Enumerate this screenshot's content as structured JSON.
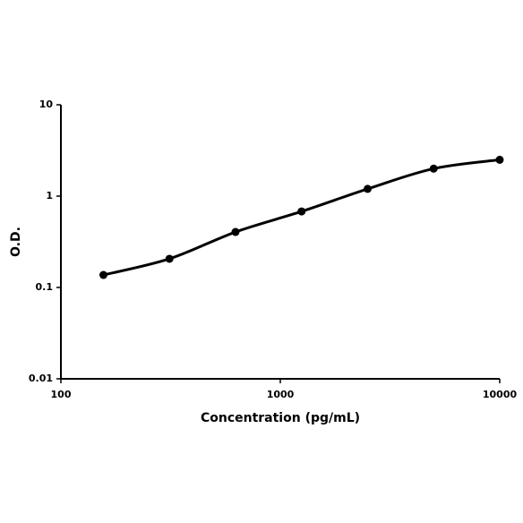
{
  "chart_data": {
    "type": "line",
    "x_label": "Concentration (pg/mL)",
    "y_label": "O.D.",
    "x": [
      156.25,
      312.5,
      625,
      1250,
      2500,
      5000,
      10000
    ],
    "series": [
      {
        "color": "#000000",
        "values": [
          0.137,
          0.206,
          0.405,
          0.68,
          1.2,
          2.0,
          2.5
        ]
      }
    ],
    "xlim": [
      100,
      10000
    ],
    "xticks": [
      100,
      1000,
      10000
    ],
    "ylim": [
      0.01,
      10
    ],
    "yticks": [
      0.01,
      0.1,
      1,
      10
    ],
    "xscale": "log",
    "yscale": "log",
    "grid": false
  }
}
